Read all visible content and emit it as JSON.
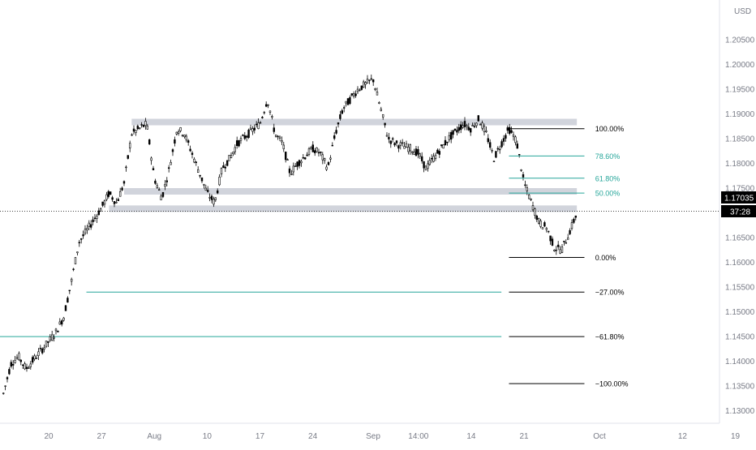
{
  "chart_data": {
    "type": "candlestick",
    "currency_label": "USD",
    "last_price": "1.17035",
    "countdown": "37:28",
    "ylim": [
      1.1275,
      1.213
    ],
    "y_ticks": [
      "1.20500",
      "1.20000",
      "1.19500",
      "1.19000",
      "1.18500",
      "1.18000",
      "1.17500",
      "1.17000",
      "1.16500",
      "1.16000",
      "1.15500",
      "1.15000",
      "1.14500",
      "1.14000",
      "1.13500",
      "1.13000"
    ],
    "x_ticks": [
      {
        "label": "20",
        "date": "2020-07-20"
      },
      {
        "label": "27",
        "date": "2020-07-27"
      },
      {
        "label": "Aug",
        "date": "2020-08-03"
      },
      {
        "label": "10",
        "date": "2020-08-10"
      },
      {
        "label": "17",
        "date": "2020-08-17"
      },
      {
        "label": "24",
        "date": "2020-08-24"
      },
      {
        "label": "Sep",
        "date": "2020-09-01"
      },
      {
        "label": "14:00",
        "date": "2020-09-07"
      },
      {
        "label": "14",
        "date": "2020-09-14"
      },
      {
        "label": "21",
        "date": "2020-09-21"
      },
      {
        "label": "Oct",
        "date": "2020-10-01"
      },
      {
        "label": "12",
        "date": "2020-10-12"
      },
      {
        "label": "19",
        "date": "2020-10-19"
      }
    ],
    "price_path": [
      [
        "2020-07-14",
        1.1335
      ],
      [
        "2020-07-15",
        1.1395
      ],
      [
        "2020-07-16",
        1.141
      ],
      [
        "2020-07-17",
        1.1385
      ],
      [
        "2020-07-20",
        1.144
      ],
      [
        "2020-07-21",
        1.146
      ],
      [
        "2020-07-22",
        1.149
      ],
      [
        "2020-07-23",
        1.156
      ],
      [
        "2020-07-24",
        1.164
      ],
      [
        "2020-07-27",
        1.171
      ],
      [
        "2020-07-28",
        1.174
      ],
      [
        "2020-07-29",
        1.172
      ],
      [
        "2020-07-30",
        1.176
      ],
      [
        "2020-07-31",
        1.186
      ],
      [
        "2020-08-02",
        1.188
      ],
      [
        "2020-08-03",
        1.177
      ],
      [
        "2020-08-04",
        1.173
      ],
      [
        "2020-08-05",
        1.179
      ],
      [
        "2020-08-06",
        1.187
      ],
      [
        "2020-08-07",
        1.186
      ],
      [
        "2020-08-08",
        1.182
      ],
      [
        "2020-08-09",
        1.178
      ],
      [
        "2020-08-10",
        1.174
      ],
      [
        "2020-08-11",
        1.172
      ],
      [
        "2020-08-12",
        1.179
      ],
      [
        "2020-08-13",
        1.181
      ],
      [
        "2020-08-14",
        1.184
      ],
      [
        "2020-08-17",
        1.188
      ],
      [
        "2020-08-18",
        1.193
      ],
      [
        "2020-08-19",
        1.186
      ],
      [
        "2020-08-20",
        1.184
      ],
      [
        "2020-08-21",
        1.178
      ],
      [
        "2020-08-22",
        1.18
      ],
      [
        "2020-08-24",
        1.183
      ],
      [
        "2020-08-25",
        1.182
      ],
      [
        "2020-08-26",
        1.179
      ],
      [
        "2020-08-27",
        1.186
      ],
      [
        "2020-08-28",
        1.191
      ],
      [
        "2020-08-30",
        1.195
      ],
      [
        "2020-09-01",
        1.197
      ],
      [
        "2020-09-02",
        1.191
      ],
      [
        "2020-09-03",
        1.185
      ],
      [
        "2020-09-04",
        1.184
      ],
      [
        "2020-09-06",
        1.183
      ],
      [
        "2020-09-07",
        1.182
      ],
      [
        "2020-09-08",
        1.179
      ],
      [
        "2020-09-09",
        1.181
      ],
      [
        "2020-09-10",
        1.183
      ],
      [
        "2020-09-11",
        1.185
      ],
      [
        "2020-09-13",
        1.188
      ],
      [
        "2020-09-14",
        1.187
      ],
      [
        "2020-09-15",
        1.189
      ],
      [
        "2020-09-16",
        1.186
      ],
      [
        "2020-09-17",
        1.181
      ],
      [
        "2020-09-18",
        1.184
      ],
      [
        "2020-09-19",
        1.187
      ],
      [
        "2020-09-20",
        1.1845
      ],
      [
        "2020-09-21",
        1.176
      ],
      [
        "2020-09-22",
        1.172
      ],
      [
        "2020-09-23",
        1.168
      ],
      [
        "2020-09-24",
        1.167
      ],
      [
        "2020-09-25",
        1.163
      ],
      [
        "2020-09-26",
        1.1625
      ],
      [
        "2020-09-27",
        1.166
      ],
      [
        "2020-09-28",
        1.17
      ]
    ],
    "zones": [
      {
        "from": "2020-07-31",
        "to": "2020-09-28",
        "low": 1.188,
        "high": 1.189
      },
      {
        "from": "2020-07-30",
        "to": "2020-09-28",
        "low": 1.174,
        "high": 1.175
      },
      {
        "from": "2020-07-28",
        "to": "2020-09-28",
        "low": 1.1705,
        "high": 1.1715
      }
    ],
    "fib_levels": [
      {
        "label": "100.00%",
        "price": 1.187,
        "color": "#000000"
      },
      {
        "label": "78.60%",
        "price": 1.1815,
        "color": "#26a69a"
      },
      {
        "label": "61.80%",
        "price": 1.177,
        "color": "#26a69a"
      },
      {
        "label": "50.00%",
        "price": 1.174,
        "color": "#26a69a"
      },
      {
        "label": "0.00%",
        "price": 1.161,
        "color": "#000000"
      },
      {
        "label": "−27.00%",
        "price": 1.154,
        "color": "#000000"
      },
      {
        "label": "−61.80%",
        "price": 1.145,
        "color": "#000000"
      },
      {
        "label": "−100.00%",
        "price": 1.1355,
        "color": "#000000"
      }
    ],
    "fib_range": {
      "from": "2020-09-19",
      "to": "2020-09-29",
      "label_date": "2020-09-30"
    },
    "support_lines": [
      {
        "price": 1.154,
        "from": "2020-07-25",
        "to": "2020-09-18",
        "color": "#26a69a"
      },
      {
        "price": 1.145,
        "from": "2020-07-13",
        "to": "2020-09-18",
        "color": "#26a69a"
      }
    ],
    "colors": {
      "candle": "#000000",
      "axis_text": "#787b86",
      "zone": "#d1d4dc",
      "teal": "#26a69a",
      "price_tag": "#000000"
    }
  }
}
